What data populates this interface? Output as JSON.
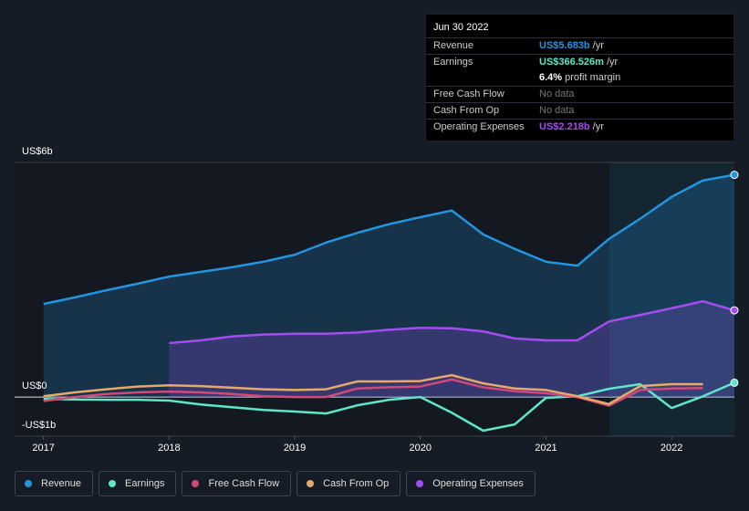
{
  "tooltip": {
    "title": "Jun 30 2022",
    "rows": [
      {
        "label": "Revenue",
        "value": "US$5.683b",
        "unit": "/yr"
      },
      {
        "label": "Earnings",
        "value": "US$366.526m",
        "unit": "/yr",
        "extra_value": "6.4%",
        "extra_unit": "profit margin"
      },
      {
        "label": "Free Cash Flow",
        "value": "No data"
      },
      {
        "label": "Cash From Op",
        "value": "No data"
      },
      {
        "label": "Operating Expenses",
        "value": "US$2.218b",
        "unit": "/yr"
      }
    ]
  },
  "chart_data": {
    "type": "line",
    "x": [
      2017,
      2017.25,
      2017.5,
      2017.75,
      2018,
      2018.25,
      2018.5,
      2018.75,
      2019,
      2019.25,
      2019.5,
      2019.75,
      2020,
      2020.25,
      2020.5,
      2020.75,
      2021,
      2021.25,
      2021.5,
      2021.75,
      2022,
      2022.25,
      2022.5
    ],
    "xlim": [
      2016.77,
      2022.5
    ],
    "xticks": [
      2017,
      2018,
      2019,
      2020,
      2021,
      2022
    ],
    "ylim": [
      -1,
      6
    ],
    "yticks": [
      {
        "value": 6,
        "label": "US$6b"
      },
      {
        "value": 0,
        "label": "US$0"
      },
      {
        "value": -1,
        "label": "-US$1b"
      }
    ],
    "series": [
      {
        "name": "Revenue",
        "color": "#2394df",
        "fill": true,
        "values": [
          2.38,
          2.55,
          2.73,
          2.9,
          3.08,
          3.2,
          3.32,
          3.46,
          3.64,
          3.95,
          4.2,
          4.42,
          4.6,
          4.77,
          4.16,
          3.79,
          3.46,
          3.36,
          4.04,
          4.56,
          5.12,
          5.54,
          5.683
        ]
      },
      {
        "name": "Earnings",
        "color": "#5ee6c8",
        "fill": false,
        "values": [
          -0.05,
          -0.06,
          -0.07,
          -0.07,
          -0.09,
          -0.19,
          -0.26,
          -0.33,
          -0.37,
          -0.42,
          -0.21,
          -0.07,
          0,
          -0.4,
          -0.86,
          -0.7,
          -0.02,
          0.02,
          0.21,
          0.33,
          -0.28,
          0.02,
          0.367
        ]
      },
      {
        "name": "Free Cash Flow",
        "color": "#d1497a",
        "fill": false,
        "values": [
          -0.1,
          0,
          0.08,
          0.12,
          0.14,
          0.12,
          0.08,
          0.02,
          0,
          0,
          0.22,
          0.25,
          0.27,
          0.45,
          0.25,
          0.15,
          0.1,
          0,
          -0.22,
          0.18,
          0.22,
          0.23,
          null
        ]
      },
      {
        "name": "Cash From Op",
        "color": "#e6a96a",
        "fill": false,
        "values": [
          0.02,
          0.12,
          0.2,
          0.27,
          0.3,
          0.28,
          0.24,
          0.2,
          0.18,
          0.2,
          0.4,
          0.4,
          0.41,
          0.56,
          0.35,
          0.22,
          0.18,
          0.02,
          -0.18,
          0.28,
          0.33,
          0.33,
          null
        ]
      },
      {
        "name": "Operating Expenses",
        "color": "#a34df0",
        "fill": true,
        "values": [
          null,
          null,
          null,
          null,
          1.38,
          1.45,
          1.55,
          1.6,
          1.62,
          1.62,
          1.65,
          1.72,
          1.77,
          1.76,
          1.68,
          1.5,
          1.45,
          1.45,
          1.93,
          2.1,
          2.27,
          2.45,
          2.218
        ]
      }
    ]
  }
}
